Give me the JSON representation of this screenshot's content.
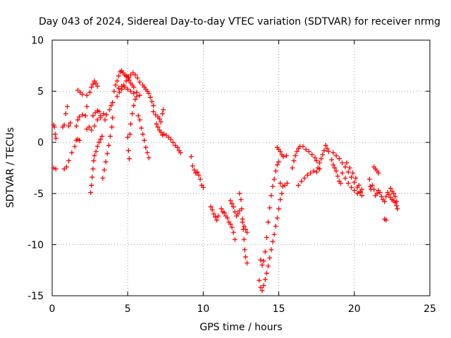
{
  "chart_data": {
    "type": "scatter",
    "title": "Day 043 of 2024, Sidereal Day-to-day VTEC variation (SDTVAR) for receiver nrmg",
    "xlabel": "GPS time / hours",
    "ylabel": "SDTVAR / TECUs",
    "xlim": [
      0,
      25
    ],
    "ylim": [
      -15,
      10
    ],
    "xticks": [
      0,
      5,
      10,
      15,
      20,
      25
    ],
    "yticks": [
      -15,
      -10,
      -5,
      0,
      5,
      10
    ],
    "grid": true,
    "marker": "+",
    "color": "#ff0000",
    "series": [
      {
        "name": "SDTVAR",
        "points": [
          [
            0.1,
            1.7
          ],
          [
            0.15,
            1.5
          ],
          [
            0.2,
            0.8
          ],
          [
            0.25,
            0.4
          ],
          [
            0.1,
            -2.5
          ],
          [
            0.25,
            -2.6
          ],
          [
            0.7,
            1.5
          ],
          [
            0.8,
            1.7
          ],
          [
            0.9,
            2.8
          ],
          [
            1.0,
            3.5
          ],
          [
            1.1,
            1.6
          ],
          [
            1.2,
            1.9
          ],
          [
            0.8,
            -2.6
          ],
          [
            0.95,
            -2.4
          ],
          [
            1.1,
            -1.8
          ],
          [
            1.3,
            -1.0
          ],
          [
            1.5,
            -0.4
          ],
          [
            1.6,
            0.2
          ],
          [
            1.7,
            0.3
          ],
          [
            1.8,
            0.2
          ],
          [
            1.6,
            1.6
          ],
          [
            1.7,
            2.2
          ],
          [
            1.8,
            2.5
          ],
          [
            2.0,
            2.7
          ],
          [
            2.2,
            2.6
          ],
          [
            2.3,
            3.5
          ],
          [
            1.7,
            5.1
          ],
          [
            1.85,
            4.9
          ],
          [
            2.0,
            4.7
          ],
          [
            2.3,
            4.6
          ],
          [
            2.5,
            4.9
          ],
          [
            2.6,
            5.4
          ],
          [
            2.7,
            5.7
          ],
          [
            2.8,
            6.0
          ],
          [
            2.9,
            5.8
          ],
          [
            3.0,
            5.5
          ],
          [
            2.3,
            1.3
          ],
          [
            2.45,
            1.5
          ],
          [
            2.6,
            1.2
          ],
          [
            2.8,
            1.6
          ],
          [
            3.0,
            2.2
          ],
          [
            3.2,
            2.6
          ],
          [
            3.4,
            2.8
          ],
          [
            3.5,
            2.2
          ],
          [
            3.6,
            2.7
          ],
          [
            3.8,
            3.2
          ],
          [
            3.9,
            3.6
          ],
          [
            4.0,
            3.9
          ],
          [
            2.55,
            -4.9
          ],
          [
            2.6,
            -4.2
          ],
          [
            2.65,
            -3.4
          ],
          [
            2.7,
            -2.6
          ],
          [
            2.75,
            -1.8
          ],
          [
            2.8,
            -1.3
          ],
          [
            2.9,
            -0.9
          ],
          [
            3.0,
            -0.4
          ],
          [
            3.1,
            0.0
          ],
          [
            3.2,
            0.3
          ],
          [
            3.3,
            0.6
          ],
          [
            3.35,
            -3.5
          ],
          [
            3.45,
            -2.7
          ],
          [
            3.55,
            -1.9
          ],
          [
            3.65,
            -1.1
          ],
          [
            3.75,
            -0.3
          ],
          [
            3.85,
            0.6
          ],
          [
            3.95,
            1.5
          ],
          [
            4.0,
            2.4
          ],
          [
            2.7,
            2.6
          ],
          [
            2.85,
            2.9
          ],
          [
            3.0,
            3.1
          ],
          [
            3.1,
            3.0
          ],
          [
            3.2,
            2.4
          ],
          [
            4.1,
            5.0
          ],
          [
            4.2,
            5.6
          ],
          [
            4.3,
            6.0
          ],
          [
            4.4,
            6.5
          ],
          [
            4.5,
            6.9
          ],
          [
            4.6,
            7.0
          ],
          [
            4.7,
            6.8
          ],
          [
            4.8,
            6.6
          ],
          [
            4.9,
            6.5
          ],
          [
            5.0,
            6.4
          ],
          [
            5.1,
            6.1
          ],
          [
            5.2,
            5.8
          ],
          [
            5.3,
            5.6
          ],
          [
            5.4,
            5.4
          ],
          [
            4.3,
            4.5
          ],
          [
            4.45,
            4.9
          ],
          [
            4.6,
            5.2
          ],
          [
            4.75,
            5.6
          ],
          [
            4.9,
            6.0
          ],
          [
            5.05,
            6.3
          ],
          [
            5.2,
            6.6
          ],
          [
            5.35,
            6.8
          ],
          [
            5.5,
            6.6
          ],
          [
            5.65,
            6.3
          ],
          [
            5.8,
            5.9
          ],
          [
            4.4,
            5.3
          ],
          [
            4.6,
            5.5
          ],
          [
            4.8,
            5.4
          ],
          [
            5.0,
            5.2
          ],
          [
            5.2,
            5.0
          ],
          [
            5.4,
            4.8
          ],
          [
            5.6,
            4.9
          ],
          [
            5.8,
            4.6
          ],
          [
            5.0,
            0.5
          ],
          [
            5.05,
            -0.8
          ],
          [
            5.1,
            -1.6
          ],
          [
            5.15,
            0.8
          ],
          [
            5.2,
            1.8
          ],
          [
            5.3,
            2.8
          ],
          [
            5.4,
            3.6
          ],
          [
            5.5,
            4.2
          ],
          [
            5.6,
            4.5
          ],
          [
            5.7,
            2.6
          ],
          [
            5.8,
            2.2
          ],
          [
            5.9,
            1.4
          ],
          [
            6.0,
            0.8
          ],
          [
            6.1,
            0.2
          ],
          [
            6.2,
            -0.5
          ],
          [
            6.3,
            -1.0
          ],
          [
            6.4,
            -1.5
          ],
          [
            6.0,
            5.6
          ],
          [
            6.1,
            5.4
          ],
          [
            6.2,
            5.2
          ],
          [
            6.3,
            5.0
          ],
          [
            6.4,
            4.8
          ],
          [
            6.5,
            4.4
          ],
          [
            6.6,
            4.0
          ],
          [
            6.7,
            3.6
          ],
          [
            6.7,
            3.0
          ],
          [
            6.85,
            2.7
          ],
          [
            7.0,
            2.5
          ],
          [
            7.1,
            2.3
          ],
          [
            7.2,
            2.0
          ],
          [
            7.3,
            2.8
          ],
          [
            7.35,
            3.2
          ],
          [
            6.9,
            1.8
          ],
          [
            7.0,
            1.5
          ],
          [
            7.1,
            1.2
          ],
          [
            7.2,
            1.0
          ],
          [
            7.3,
            0.7
          ],
          [
            7.4,
            0.8
          ],
          [
            7.55,
            0.7
          ],
          [
            7.7,
            0.5
          ],
          [
            7.85,
            0.3
          ],
          [
            8.0,
            0.0
          ],
          [
            8.15,
            -0.3
          ],
          [
            8.3,
            -0.5
          ],
          [
            8.4,
            -0.8
          ],
          [
            8.5,
            -1.0
          ],
          [
            9.2,
            -1.4
          ],
          [
            9.3,
            -2.3
          ],
          [
            9.4,
            -2.7
          ],
          [
            9.5,
            -3.0
          ],
          [
            9.6,
            -2.9
          ],
          [
            9.7,
            -3.2
          ],
          [
            9.8,
            -3.6
          ],
          [
            9.9,
            -4.2
          ],
          [
            10.0,
            -4.4
          ],
          [
            10.5,
            -6.3
          ],
          [
            10.6,
            -6.6
          ],
          [
            10.7,
            -7.0
          ],
          [
            10.8,
            -7.3
          ],
          [
            10.9,
            -7.6
          ],
          [
            11.0,
            -7.2
          ],
          [
            11.2,
            -6.5
          ],
          [
            11.3,
            -6.8
          ],
          [
            11.4,
            -6.9
          ],
          [
            11.5,
            -7.2
          ],
          [
            11.6,
            -7.4
          ],
          [
            11.7,
            -7.8
          ],
          [
            11.8,
            -8.0
          ],
          [
            11.9,
            -8.3
          ],
          [
            12.0,
            -8.8
          ],
          [
            12.1,
            -9.5
          ],
          [
            11.8,
            -5.7
          ],
          [
            11.9,
            -6.0
          ],
          [
            12.0,
            -6.3
          ],
          [
            12.1,
            -6.8
          ],
          [
            12.2,
            -7.2
          ],
          [
            12.3,
            -7.0
          ],
          [
            12.4,
            -6.7
          ],
          [
            12.4,
            -5.0
          ],
          [
            12.5,
            -5.6
          ],
          [
            12.55,
            -6.5
          ],
          [
            12.6,
            -7.5
          ],
          [
            12.65,
            -8.5
          ],
          [
            12.7,
            -9.5
          ],
          [
            12.75,
            -10.5
          ],
          [
            12.8,
            -11.2
          ],
          [
            12.9,
            -11.8
          ],
          [
            12.6,
            -7.8
          ],
          [
            12.7,
            -8.2
          ],
          [
            12.8,
            -8.5
          ],
          [
            12.9,
            -8.8
          ],
          [
            13.7,
            -13.5
          ],
          [
            13.8,
            -14.2
          ],
          [
            13.9,
            -14.5
          ],
          [
            14.0,
            -14.0
          ],
          [
            14.1,
            -13.4
          ],
          [
            14.2,
            -12.8
          ],
          [
            14.3,
            -12.1
          ],
          [
            14.4,
            -11.3
          ],
          [
            14.5,
            -10.5
          ],
          [
            14.6,
            -9.7
          ],
          [
            14.7,
            -9.0
          ],
          [
            14.8,
            -8.2
          ],
          [
            14.9,
            -7.4
          ],
          [
            15.0,
            -6.5
          ],
          [
            15.1,
            -5.6
          ],
          [
            15.2,
            -5.0
          ],
          [
            13.8,
            -11.5
          ],
          [
            13.9,
            -12.0
          ],
          [
            14.0,
            -11.6
          ],
          [
            14.1,
            -10.7
          ],
          [
            14.2,
            -9.3
          ],
          [
            14.3,
            -7.8
          ],
          [
            14.4,
            -6.4
          ],
          [
            14.5,
            -5.2
          ],
          [
            14.6,
            -4.3
          ],
          [
            14.7,
            -3.6
          ],
          [
            14.8,
            -2.8
          ],
          [
            14.9,
            -2.2
          ],
          [
            15.0,
            -1.9
          ],
          [
            14.9,
            -0.5
          ],
          [
            15.0,
            -0.7
          ],
          [
            15.1,
            -0.9
          ],
          [
            15.2,
            -1.2
          ],
          [
            15.3,
            -1.4
          ],
          [
            15.5,
            -1.3
          ],
          [
            15.1,
            -4.0
          ],
          [
            15.25,
            -4.3
          ],
          [
            15.4,
            -4.2
          ],
          [
            15.55,
            -4.0
          ],
          [
            15.9,
            -2.5
          ],
          [
            16.0,
            -1.8
          ],
          [
            16.1,
            -1.3
          ],
          [
            16.2,
            -0.9
          ],
          [
            16.3,
            -0.6
          ],
          [
            16.4,
            -0.4
          ],
          [
            16.3,
            -4.2
          ],
          [
            16.5,
            -3.8
          ],
          [
            16.7,
            -3.5
          ],
          [
            16.9,
            -3.2
          ],
          [
            17.1,
            -3.0
          ],
          [
            17.3,
            -2.8
          ],
          [
            17.5,
            -2.9
          ],
          [
            17.7,
            -2.6
          ],
          [
            16.6,
            -0.4
          ],
          [
            16.8,
            -0.7
          ],
          [
            17.0,
            -0.9
          ],
          [
            17.2,
            -1.2
          ],
          [
            17.4,
            -1.5
          ],
          [
            17.5,
            -1.8
          ],
          [
            17.6,
            -2.5
          ],
          [
            17.7,
            -2.0
          ],
          [
            17.8,
            -1.6
          ],
          [
            17.9,
            -1.2
          ],
          [
            18.0,
            -0.8
          ],
          [
            18.1,
            -0.3
          ],
          [
            18.2,
            -0.6
          ],
          [
            18.3,
            -0.9
          ],
          [
            18.5,
            -1.7
          ],
          [
            18.6,
            -2.2
          ],
          [
            18.7,
            -2.5
          ],
          [
            18.8,
            -2.8
          ],
          [
            18.9,
            -3.3
          ],
          [
            19.0,
            -3.8
          ],
          [
            19.1,
            -4.0
          ],
          [
            18.6,
            -1.0
          ],
          [
            18.8,
            -1.3
          ],
          [
            19.0,
            -1.6
          ],
          [
            19.2,
            -2.0
          ],
          [
            19.4,
            -2.4
          ],
          [
            19.6,
            -2.9
          ],
          [
            19.8,
            -3.4
          ],
          [
            20.0,
            -3.9
          ],
          [
            20.2,
            -4.4
          ],
          [
            20.4,
            -4.9
          ],
          [
            20.5,
            -5.2
          ],
          [
            19.2,
            -3.0
          ],
          [
            19.4,
            -3.5
          ],
          [
            19.6,
            -4.0
          ],
          [
            19.8,
            -4.4
          ],
          [
            20.0,
            -4.7
          ],
          [
            20.2,
            -5.0
          ],
          [
            20.4,
            -4.8
          ],
          [
            20.5,
            -4.6
          ],
          [
            19.5,
            -2.0
          ],
          [
            19.7,
            -2.5
          ],
          [
            19.9,
            -3.0
          ],
          [
            20.1,
            -3.5
          ],
          [
            20.3,
            -4.2
          ],
          [
            21.0,
            -3.6
          ],
          [
            21.05,
            -4.3
          ],
          [
            21.1,
            -4.6
          ],
          [
            21.2,
            -4.2
          ],
          [
            21.3,
            -4.6
          ],
          [
            21.4,
            -5.2
          ],
          [
            21.5,
            -5.0
          ],
          [
            21.6,
            -4.7
          ],
          [
            21.7,
            -4.9
          ],
          [
            21.8,
            -5.3
          ],
          [
            21.9,
            -5.6
          ],
          [
            22.0,
            -5.8
          ],
          [
            22.1,
            -5.3
          ],
          [
            22.2,
            -4.9
          ],
          [
            22.3,
            -5.1
          ],
          [
            22.4,
            -5.4
          ],
          [
            22.5,
            -5.6
          ],
          [
            22.6,
            -5.7
          ],
          [
            22.7,
            -5.9
          ],
          [
            22.8,
            -6.2
          ],
          [
            22.85,
            -6.5
          ],
          [
            21.3,
            -2.4
          ],
          [
            21.4,
            -2.6
          ],
          [
            21.5,
            -2.8
          ],
          [
            21.6,
            -3.0
          ],
          [
            22.0,
            -7.5
          ],
          [
            22.1,
            -7.6
          ],
          [
            22.4,
            -4.5
          ],
          [
            22.5,
            -4.8
          ],
          [
            22.6,
            -5.0
          ],
          [
            22.7,
            -5.3
          ],
          [
            22.8,
            -5.8
          ]
        ]
      }
    ]
  }
}
